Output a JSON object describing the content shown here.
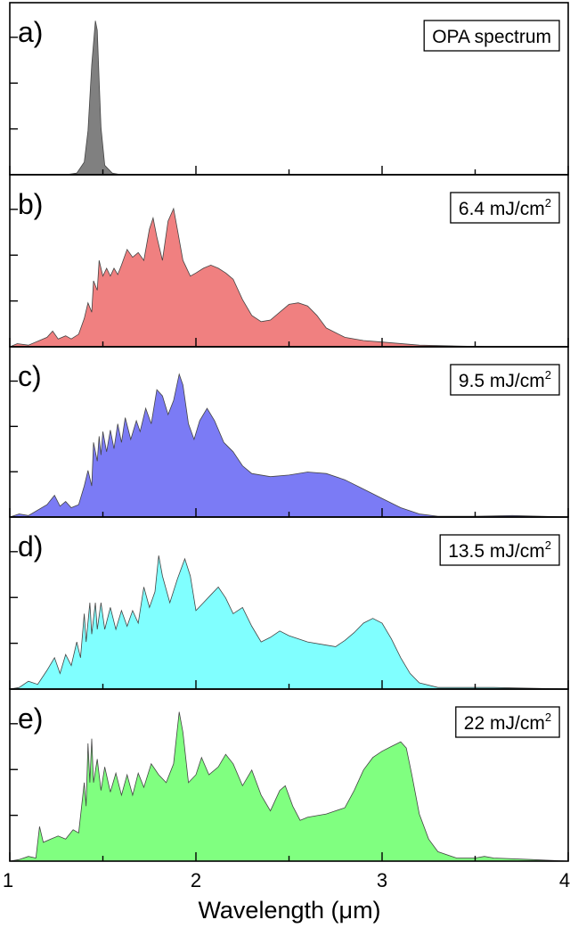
{
  "chart_data": {
    "type": "area",
    "xlabel": "Wavelength (μm)",
    "xlim": [
      1,
      4
    ],
    "x_ticks": [
      "1",
      "2",
      "3",
      "4"
    ],
    "ylim": [
      0,
      1.05
    ],
    "grid": false,
    "panels": [
      {
        "label": "a)",
        "annotation": "OPA spectrum",
        "color": "#808080",
        "points": [
          [
            1.0,
            0
          ],
          [
            1.3,
            0
          ],
          [
            1.36,
            0.01
          ],
          [
            1.4,
            0.08
          ],
          [
            1.42,
            0.28
          ],
          [
            1.44,
            0.7
          ],
          [
            1.46,
            0.98
          ],
          [
            1.47,
            0.92
          ],
          [
            1.48,
            0.6
          ],
          [
            1.49,
            0.3
          ],
          [
            1.51,
            0.06
          ],
          [
            1.55,
            0.01
          ],
          [
            1.6,
            0
          ],
          [
            4.0,
            0
          ]
        ]
      },
      {
        "label": "b)",
        "annotation": "6.4 mJ/cm",
        "annotation_sup": "2",
        "color": "#f08080",
        "points": [
          [
            1.0,
            0
          ],
          [
            1.04,
            0.02
          ],
          [
            1.1,
            0.01
          ],
          [
            1.2,
            0.06
          ],
          [
            1.23,
            0.1
          ],
          [
            1.26,
            0.05
          ],
          [
            1.3,
            0.07
          ],
          [
            1.33,
            0.05
          ],
          [
            1.37,
            0.08
          ],
          [
            1.4,
            0.18
          ],
          [
            1.42,
            0.28
          ],
          [
            1.44,
            0.22
          ],
          [
            1.45,
            0.42
          ],
          [
            1.47,
            0.36
          ],
          [
            1.48,
            0.55
          ],
          [
            1.5,
            0.45
          ],
          [
            1.52,
            0.5
          ],
          [
            1.54,
            0.45
          ],
          [
            1.56,
            0.5
          ],
          [
            1.58,
            0.46
          ],
          [
            1.6,
            0.52
          ],
          [
            1.63,
            0.62
          ],
          [
            1.66,
            0.57
          ],
          [
            1.69,
            0.6
          ],
          [
            1.72,
            0.55
          ],
          [
            1.75,
            0.75
          ],
          [
            1.77,
            0.82
          ],
          [
            1.79,
            0.7
          ],
          [
            1.82,
            0.55
          ],
          [
            1.85,
            0.8
          ],
          [
            1.88,
            0.88
          ],
          [
            1.9,
            0.75
          ],
          [
            1.93,
            0.55
          ],
          [
            1.97,
            0.45
          ],
          [
            2.0,
            0.47
          ],
          [
            2.04,
            0.5
          ],
          [
            2.08,
            0.52
          ],
          [
            2.12,
            0.5
          ],
          [
            2.16,
            0.47
          ],
          [
            2.2,
            0.43
          ],
          [
            2.25,
            0.3
          ],
          [
            2.3,
            0.2
          ],
          [
            2.35,
            0.16
          ],
          [
            2.4,
            0.17
          ],
          [
            2.45,
            0.22
          ],
          [
            2.5,
            0.27
          ],
          [
            2.55,
            0.28
          ],
          [
            2.6,
            0.26
          ],
          [
            2.65,
            0.2
          ],
          [
            2.7,
            0.12
          ],
          [
            2.8,
            0.06
          ],
          [
            2.9,
            0.04
          ],
          [
            3.0,
            0.03
          ],
          [
            3.2,
            0.01
          ],
          [
            3.4,
            0.005
          ],
          [
            3.6,
            0
          ],
          [
            4.0,
            0
          ]
        ]
      },
      {
        "label": "c)",
        "annotation": "9.5 mJ/cm",
        "annotation_sup": "2",
        "color": "#7b7bf5",
        "points": [
          [
            1.0,
            0
          ],
          [
            1.05,
            0.02
          ],
          [
            1.1,
            0.01
          ],
          [
            1.2,
            0.08
          ],
          [
            1.24,
            0.14
          ],
          [
            1.27,
            0.07
          ],
          [
            1.3,
            0.1
          ],
          [
            1.33,
            0.06
          ],
          [
            1.37,
            0.08
          ],
          [
            1.4,
            0.2
          ],
          [
            1.42,
            0.3
          ],
          [
            1.44,
            0.2
          ],
          [
            1.45,
            0.48
          ],
          [
            1.47,
            0.36
          ],
          [
            1.48,
            0.52
          ],
          [
            1.49,
            0.4
          ],
          [
            1.5,
            0.55
          ],
          [
            1.52,
            0.42
          ],
          [
            1.54,
            0.56
          ],
          [
            1.56,
            0.44
          ],
          [
            1.58,
            0.6
          ],
          [
            1.6,
            0.48
          ],
          [
            1.62,
            0.64
          ],
          [
            1.65,
            0.5
          ],
          [
            1.68,
            0.62
          ],
          [
            1.7,
            0.55
          ],
          [
            1.73,
            0.7
          ],
          [
            1.76,
            0.6
          ],
          [
            1.79,
            0.82
          ],
          [
            1.82,
            0.78
          ],
          [
            1.85,
            0.66
          ],
          [
            1.88,
            0.75
          ],
          [
            1.91,
            0.92
          ],
          [
            1.93,
            0.85
          ],
          [
            1.96,
            0.6
          ],
          [
            1.99,
            0.5
          ],
          [
            2.02,
            0.62
          ],
          [
            2.06,
            0.7
          ],
          [
            2.1,
            0.62
          ],
          [
            2.15,
            0.48
          ],
          [
            2.2,
            0.42
          ],
          [
            2.25,
            0.33
          ],
          [
            2.3,
            0.28
          ],
          [
            2.4,
            0.26
          ],
          [
            2.5,
            0.27
          ],
          [
            2.6,
            0.29
          ],
          [
            2.7,
            0.28
          ],
          [
            2.8,
            0.24
          ],
          [
            2.9,
            0.18
          ],
          [
            3.0,
            0.12
          ],
          [
            3.1,
            0.06
          ],
          [
            3.2,
            0.02
          ],
          [
            3.3,
            0.005
          ],
          [
            3.5,
            0.005
          ],
          [
            3.7,
            0.01
          ],
          [
            4.0,
            0
          ]
        ]
      },
      {
        "label": "d)",
        "annotation": "13.5 mJ/cm",
        "annotation_sup": "2",
        "color": "#80ffff",
        "points": [
          [
            1.0,
            0
          ],
          [
            1.05,
            0.01
          ],
          [
            1.1,
            0.05
          ],
          [
            1.15,
            0.03
          ],
          [
            1.2,
            0.12
          ],
          [
            1.24,
            0.2
          ],
          [
            1.27,
            0.1
          ],
          [
            1.3,
            0.22
          ],
          [
            1.33,
            0.15
          ],
          [
            1.36,
            0.3
          ],
          [
            1.38,
            0.2
          ],
          [
            1.4,
            0.48
          ],
          [
            1.41,
            0.3
          ],
          [
            1.43,
            0.55
          ],
          [
            1.44,
            0.35
          ],
          [
            1.46,
            0.55
          ],
          [
            1.47,
            0.38
          ],
          [
            1.49,
            0.55
          ],
          [
            1.51,
            0.38
          ],
          [
            1.54,
            0.52
          ],
          [
            1.57,
            0.38
          ],
          [
            1.6,
            0.5
          ],
          [
            1.63,
            0.4
          ],
          [
            1.66,
            0.5
          ],
          [
            1.69,
            0.42
          ],
          [
            1.72,
            0.65
          ],
          [
            1.75,
            0.52
          ],
          [
            1.78,
            0.62
          ],
          [
            1.8,
            0.85
          ],
          [
            1.82,
            0.72
          ],
          [
            1.86,
            0.55
          ],
          [
            1.9,
            0.7
          ],
          [
            1.94,
            0.83
          ],
          [
            1.97,
            0.72
          ],
          [
            2.0,
            0.5
          ],
          [
            2.04,
            0.55
          ],
          [
            2.08,
            0.6
          ],
          [
            2.12,
            0.65
          ],
          [
            2.16,
            0.58
          ],
          [
            2.2,
            0.48
          ],
          [
            2.25,
            0.52
          ],
          [
            2.3,
            0.4
          ],
          [
            2.35,
            0.3
          ],
          [
            2.4,
            0.33
          ],
          [
            2.45,
            0.37
          ],
          [
            2.5,
            0.34
          ],
          [
            2.6,
            0.3
          ],
          [
            2.7,
            0.28
          ],
          [
            2.75,
            0.27
          ],
          [
            2.8,
            0.31
          ],
          [
            2.85,
            0.36
          ],
          [
            2.9,
            0.42
          ],
          [
            2.95,
            0.45
          ],
          [
            3.0,
            0.42
          ],
          [
            3.05,
            0.32
          ],
          [
            3.1,
            0.2
          ],
          [
            3.15,
            0.1
          ],
          [
            3.2,
            0.04
          ],
          [
            3.3,
            0.01
          ],
          [
            3.6,
            0.01
          ],
          [
            4.0,
            0
          ]
        ]
      },
      {
        "label": "e)",
        "annotation": "22 mJ/cm",
        "annotation_sup": "2",
        "color": "#80ff80",
        "points": [
          [
            1.0,
            0
          ],
          [
            1.05,
            0.01
          ],
          [
            1.1,
            0.03
          ],
          [
            1.14,
            0.02
          ],
          [
            1.16,
            0.22
          ],
          [
            1.18,
            0.12
          ],
          [
            1.22,
            0.14
          ],
          [
            1.26,
            0.16
          ],
          [
            1.3,
            0.14
          ],
          [
            1.34,
            0.2
          ],
          [
            1.37,
            0.18
          ],
          [
            1.4,
            0.5
          ],
          [
            1.41,
            0.35
          ],
          [
            1.42,
            0.75
          ],
          [
            1.43,
            0.5
          ],
          [
            1.44,
            0.78
          ],
          [
            1.45,
            0.5
          ],
          [
            1.47,
            0.65
          ],
          [
            1.49,
            0.45
          ],
          [
            1.51,
            0.6
          ],
          [
            1.54,
            0.44
          ],
          [
            1.57,
            0.56
          ],
          [
            1.6,
            0.42
          ],
          [
            1.63,
            0.55
          ],
          [
            1.66,
            0.42
          ],
          [
            1.69,
            0.56
          ],
          [
            1.72,
            0.47
          ],
          [
            1.76,
            0.62
          ],
          [
            1.8,
            0.55
          ],
          [
            1.84,
            0.5
          ],
          [
            1.88,
            0.62
          ],
          [
            1.91,
            0.95
          ],
          [
            1.93,
            0.82
          ],
          [
            1.96,
            0.5
          ],
          [
            2.0,
            0.55
          ],
          [
            2.03,
            0.66
          ],
          [
            2.07,
            0.55
          ],
          [
            2.12,
            0.6
          ],
          [
            2.16,
            0.68
          ],
          [
            2.2,
            0.62
          ],
          [
            2.25,
            0.48
          ],
          [
            2.3,
            0.58
          ],
          [
            2.35,
            0.42
          ],
          [
            2.4,
            0.32
          ],
          [
            2.45,
            0.45
          ],
          [
            2.48,
            0.48
          ],
          [
            2.52,
            0.35
          ],
          [
            2.56,
            0.26
          ],
          [
            2.6,
            0.28
          ],
          [
            2.7,
            0.3
          ],
          [
            2.8,
            0.34
          ],
          [
            2.85,
            0.45
          ],
          [
            2.9,
            0.58
          ],
          [
            2.95,
            0.66
          ],
          [
            3.0,
            0.7
          ],
          [
            3.05,
            0.73
          ],
          [
            3.1,
            0.76
          ],
          [
            3.13,
            0.72
          ],
          [
            3.16,
            0.55
          ],
          [
            3.2,
            0.3
          ],
          [
            3.25,
            0.14
          ],
          [
            3.3,
            0.06
          ],
          [
            3.4,
            0.02
          ],
          [
            3.5,
            0.02
          ],
          [
            3.55,
            0.03
          ],
          [
            3.6,
            0.02
          ],
          [
            3.8,
            0.01
          ],
          [
            4.0,
            0
          ]
        ]
      }
    ]
  }
}
